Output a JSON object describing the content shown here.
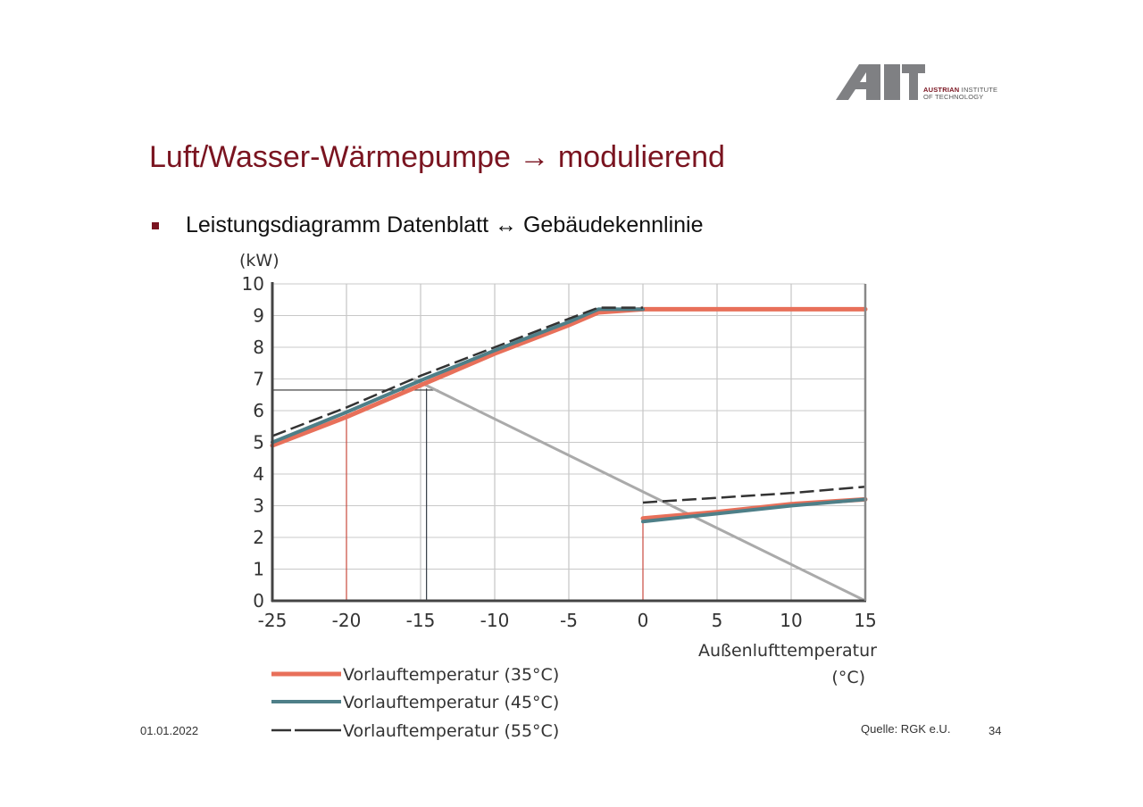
{
  "slide": {
    "title": "Luft/Wasser-Wärmepumpe → modulierend",
    "bullet": "Leistungsdiagramm Datenblatt ↔ Gebäudekennlinie",
    "date": "01.01.2022",
    "source": "Quelle: RGK e.U.",
    "page_number": "34",
    "logo": {
      "mark": "AIT",
      "line1_bold": "AUSTRIAN",
      "line1_rest": "INSTITUTE",
      "line2": "OF TECHNOLOGY"
    },
    "colors": {
      "title": "#7a1420",
      "bullet": "#7a1420"
    }
  },
  "chart_data": {
    "type": "line",
    "ylabel": "(kW)",
    "xlabel_line1": "Außenlufttemperatur",
    "xlabel_line2": "(°C)",
    "xlim": [
      -25,
      15
    ],
    "ylim": [
      0,
      10
    ],
    "xticks": [
      -25,
      -20,
      -15,
      -10,
      -5,
      0,
      5,
      10,
      15
    ],
    "yticks": [
      0,
      1,
      2,
      3,
      4,
      5,
      6,
      7,
      8,
      9,
      10
    ],
    "xtick_labels": [
      "-25",
      "-20",
      "-15",
      "-10",
      "-5",
      "0",
      "5",
      "10",
      "15"
    ],
    "ytick_labels": [
      "0",
      "1",
      "2",
      "3",
      "4",
      "5",
      "6",
      "7",
      "8",
      "9",
      "10"
    ],
    "grid": true,
    "legend_position": "bottom-left",
    "series": [
      {
        "name": "Vorlauftemperatur (35°C)",
        "color": "#e8705a",
        "style": "solid",
        "width": 5,
        "segments": [
          [
            [
              -25,
              4.9
            ],
            [
              -20,
              5.8
            ],
            [
              -15,
              6.8
            ],
            [
              -10,
              7.8
            ],
            [
              -5,
              8.7
            ],
            [
              -3,
              9.1
            ],
            [
              0,
              9.2
            ],
            [
              15,
              9.2
            ]
          ],
          [
            [
              0,
              2.6
            ],
            [
              5,
              2.8
            ],
            [
              10,
              3.05
            ],
            [
              15,
              3.2
            ]
          ]
        ]
      },
      {
        "name": "Vorlauftemperatur (45°C)",
        "color": "#4e7f88",
        "style": "solid",
        "width": 4,
        "segments": [
          [
            [
              -25,
              5.0
            ],
            [
              -20,
              5.95
            ],
            [
              -15,
              6.95
            ],
            [
              -10,
              7.9
            ],
            [
              -5,
              8.8
            ],
            [
              -3,
              9.2
            ],
            [
              0,
              9.2
            ]
          ],
          [
            [
              0,
              2.5
            ],
            [
              5,
              2.75
            ],
            [
              10,
              3.0
            ],
            [
              15,
              3.2
            ]
          ]
        ]
      },
      {
        "name": "Vorlauftemperatur (55°C)",
        "color": "#333333",
        "style": "dashed",
        "width": 2.5,
        "segments": [
          [
            [
              -25,
              5.2
            ],
            [
              -20,
              6.1
            ],
            [
              -15,
              7.1
            ],
            [
              -10,
              8.0
            ],
            [
              -5,
              8.9
            ],
            [
              -3,
              9.25
            ],
            [
              0,
              9.25
            ]
          ],
          [
            [
              0,
              3.1
            ],
            [
              5,
              3.25
            ],
            [
              10,
              3.4
            ],
            [
              15,
              3.6
            ]
          ]
        ]
      }
    ],
    "building_line": {
      "color": "#aaaaaa",
      "points": [
        [
          -15.5,
          7.0
        ],
        [
          15,
          0
        ]
      ]
    },
    "markers": [
      {
        "type": "vline",
        "x": -20,
        "y_top": 5.9,
        "color": "#c94a3e"
      },
      {
        "type": "vline",
        "x": 0,
        "y_top": 2.6,
        "color": "#c94a3e"
      },
      {
        "type": "vline",
        "x": -14.6,
        "y_top": 6.7,
        "color": "#333a44"
      },
      {
        "type": "hline",
        "y": 6.65,
        "x_from": -25,
        "x_to": -13.8,
        "color": "#333333"
      }
    ]
  }
}
